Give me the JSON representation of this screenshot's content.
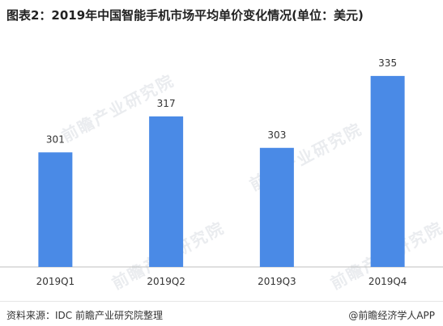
{
  "title": "图表2：2019年中国智能手机市场平均单价变化情况(单位：美元)",
  "chart_data": {
    "type": "bar",
    "categories": [
      "2019Q1",
      "2019Q2",
      "2019Q3",
      "2019Q4"
    ],
    "values": [
      301,
      317,
      303,
      335
    ],
    "title": "",
    "xlabel": "",
    "ylabel": "",
    "ylim": [
      250,
      340
    ],
    "bar_color": "#4a8ae6",
    "grid": false
  },
  "watermark": "前瞻产业研究院",
  "footer": {
    "source": "资料来源：IDC 前瞻产业研究院整理",
    "brand": "@前瞻经济学人APP"
  }
}
